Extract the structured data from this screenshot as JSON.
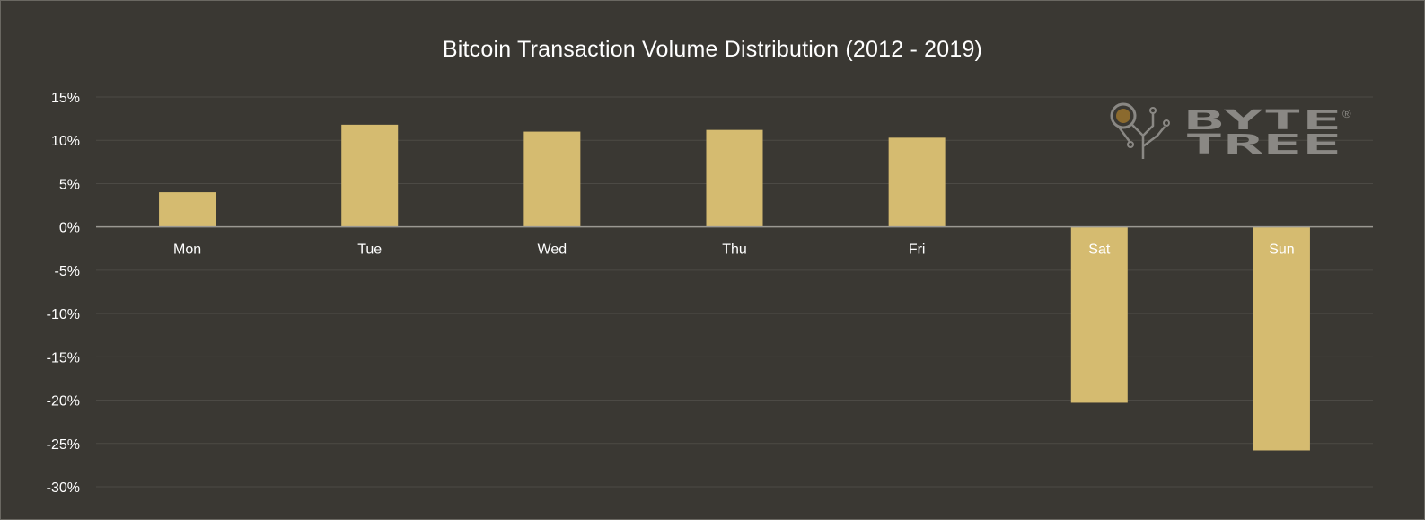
{
  "chart_data": {
    "type": "bar",
    "title": "Bitcoin Transaction Volume Distribution (2012 - 2019)",
    "xlabel": "",
    "ylabel": "",
    "categories": [
      "Mon",
      "Tue",
      "Wed",
      "Thu",
      "Fri",
      "Sat",
      "Sun"
    ],
    "values": [
      4.0,
      11.8,
      11.0,
      11.2,
      10.3,
      -20.3,
      -25.8
    ],
    "yticks": [
      "15%",
      "10%",
      "5%",
      "0%",
      "-5%",
      "-10%",
      "-15%",
      "-20%",
      "-25%",
      "-30%"
    ],
    "ylim": [
      -30,
      15
    ],
    "grid": true,
    "legend": "none",
    "colors": {
      "bar": "#d5bb70",
      "background": "#3a3833",
      "grid": "#4c4a45",
      "axis": "#9a9892",
      "logo": "#8a8884",
      "logo_dot": "#8b6a2e"
    }
  },
  "logo": {
    "line1": "BYTE",
    "line2": "TREE",
    "mark": "®"
  }
}
